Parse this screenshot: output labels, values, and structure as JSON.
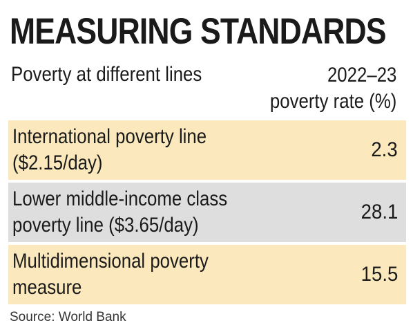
{
  "title": "MEASURING STANDARDS",
  "chart_data": {
    "type": "table",
    "columns": [
      "Poverty at different lines",
      "2022–23\npoverty rate (%)"
    ],
    "rows": [
      {
        "label": "International poverty line\n($2.15/day)",
        "value": "2.3"
      },
      {
        "label": "Lower middle-income class\npoverty line ($3.65/day)",
        "value": "28.1"
      },
      {
        "label": "Multidimensional poverty\nmeasure",
        "value": "15.5"
      }
    ]
  },
  "source": "Source: World Bank",
  "colors": {
    "row_light": "#fbe9bd",
    "row_gray": "#dedede",
    "text": "#1a1a1a"
  }
}
